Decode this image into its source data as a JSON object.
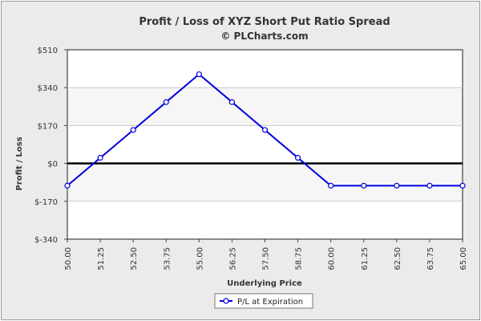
{
  "chart_data": {
    "type": "line",
    "title": "Profit / Loss of XYZ Short Put Ratio Spread",
    "subtitle": "© PLCharts.com",
    "xlabel": "Underlying Price",
    "ylabel": "Profit / Loss",
    "ylim": [
      -340,
      510
    ],
    "y_ticks": [
      510,
      340,
      170,
      0,
      -170,
      -340
    ],
    "y_tick_labels": [
      "$510",
      "$340",
      "$170",
      "$0",
      "$-170",
      "$-340"
    ],
    "x_tick_labels": [
      "50.00",
      "51.25",
      "52.50",
      "53.75",
      "55.00",
      "56.25",
      "57.50",
      "58.75",
      "60.00",
      "61.25",
      "62.50",
      "63.75",
      "65.00"
    ],
    "x": [
      50.0,
      51.25,
      52.5,
      53.75,
      55.0,
      56.25,
      57.5,
      58.75,
      60.0,
      61.25,
      62.5,
      63.75,
      65.0
    ],
    "series": [
      {
        "name": "P/L at Expiration",
        "color": "#0000e0",
        "values": [
          -100,
          25,
          150,
          275,
          400,
          275,
          150,
          25,
          -100,
          -100,
          -100,
          -100,
          -100
        ]
      }
    ],
    "legend_position": "bottom-center",
    "grid": true,
    "zero_line": true
  }
}
